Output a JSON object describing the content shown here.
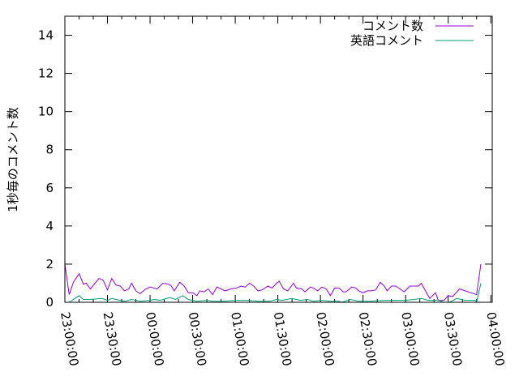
{
  "chart_data": {
    "type": "line",
    "title": "",
    "xlabel": "",
    "ylabel": "1秒毎のコメント数",
    "ylim": [
      0,
      15
    ],
    "xlim": [
      "23:00:00",
      "04:01:00"
    ],
    "yticks": [
      "0",
      "2",
      "4",
      "6",
      "8",
      "10",
      "12",
      "14"
    ],
    "xticks": [
      "23:00:00",
      "23:30:00",
      "00:00:00",
      "00:30:00",
      "01:00:00",
      "01:30:00",
      "02:00:00",
      "02:30:00",
      "03:00:00",
      "03:30:00",
      "04:00:00"
    ],
    "grid": false,
    "legend_position": "top-right",
    "series": [
      {
        "name": "コメント数",
        "color": "#9400d3",
        "x": [
          "23:00",
          "23:03",
          "23:06",
          "23:10",
          "23:13",
          "23:15",
          "23:18",
          "23:24",
          "23:27",
          "23:30",
          "23:33",
          "23:36",
          "23:39",
          "23:42",
          "23:45",
          "23:47",
          "23:50",
          "23:53",
          "23:57",
          "00:00",
          "00:05",
          "00:09",
          "00:13",
          "00:15",
          "00:17",
          "00:21",
          "00:24",
          "00:27",
          "00:30",
          "00:33",
          "00:35",
          "00:38",
          "00:41",
          "00:44",
          "00:47",
          "00:50",
          "00:53",
          "00:57",
          "01:01",
          "01:04",
          "01:07",
          "01:10",
          "01:13",
          "01:16",
          "01:19",
          "01:23",
          "01:26",
          "01:29",
          "01:31",
          "01:34",
          "01:37",
          "01:41",
          "01:43",
          "01:47",
          "01:49",
          "01:53",
          "01:55",
          "01:58",
          "02:01",
          "02:04",
          "02:07",
          "02:10",
          "02:13",
          "02:16",
          "02:18",
          "02:22",
          "02:25",
          "02:27",
          "02:30",
          "02:33",
          "02:36",
          "02:39",
          "02:42",
          "02:45",
          "02:47",
          "02:50",
          "02:53",
          "02:56",
          "02:59",
          "03:03",
          "03:06",
          "03:09",
          "03:11",
          "03:14",
          "03:17",
          "03:21",
          "03:23",
          "03:27",
          "03:30",
          "03:33",
          "03:35",
          "03:38",
          "03:42",
          "03:46",
          "03:50",
          "03:53"
        ],
        "values": [
          2.0,
          0.4,
          1.05,
          1.5,
          0.95,
          1.0,
          0.7,
          1.25,
          1.15,
          0.65,
          1.25,
          0.9,
          0.85,
          0.6,
          0.7,
          1.0,
          0.6,
          0.45,
          0.7,
          0.8,
          0.7,
          1.0,
          0.95,
          0.85,
          0.6,
          1.05,
          0.85,
          0.5,
          0.5,
          0.35,
          0.6,
          0.55,
          0.7,
          0.4,
          0.8,
          0.7,
          0.6,
          0.7,
          0.75,
          0.85,
          0.8,
          1.0,
          0.85,
          0.6,
          0.65,
          0.85,
          0.75,
          1.0,
          1.1,
          0.7,
          0.6,
          1.0,
          0.75,
          0.7,
          0.55,
          0.8,
          0.75,
          0.6,
          0.8,
          0.7,
          0.35,
          0.75,
          0.75,
          0.55,
          0.55,
          0.8,
          0.75,
          0.6,
          0.5,
          0.6,
          0.6,
          0.65,
          1.05,
          0.85,
          0.6,
          0.85,
          0.85,
          0.7,
          0.55,
          0.85,
          0.85,
          0.85,
          1.0,
          0.6,
          0.2,
          0.5,
          0.1,
          0.1,
          0.35,
          0.3,
          0.45,
          0.7,
          0.6,
          0.5,
          0.4,
          2.0
        ]
      },
      {
        "name": "英語コメント",
        "color": "#009e73",
        "x": [
          "23:03",
          "23:10",
          "23:13",
          "23:18",
          "23:26",
          "23:30",
          "23:33",
          "23:36",
          "23:42",
          "23:47",
          "23:53",
          "00:00",
          "00:03",
          "00:07",
          "00:14",
          "00:18",
          "00:23",
          "00:27",
          "00:33",
          "00:40",
          "00:44",
          "00:51",
          "01:01",
          "01:09",
          "01:16",
          "01:24",
          "01:29",
          "01:33",
          "01:40",
          "01:46",
          "01:51",
          "01:55",
          "02:01",
          "02:07",
          "02:13",
          "02:15",
          "02:21",
          "02:27",
          "02:34",
          "02:45",
          "03:00",
          "03:06",
          "03:11",
          "03:16",
          "03:23",
          "03:27",
          "03:31",
          "03:36",
          "03:42",
          "03:49",
          "03:50",
          "03:53"
        ],
        "values": [
          0,
          0.35,
          0.15,
          0.15,
          0.2,
          0.1,
          0.2,
          0.15,
          0.05,
          0.15,
          0.05,
          0.1,
          0.15,
          0.1,
          0.25,
          0.15,
          0.35,
          0.15,
          0.05,
          0.1,
          0.05,
          0.05,
          0.1,
          0.1,
          0.05,
          0.05,
          0.15,
          0.1,
          0.2,
          0.1,
          0.15,
          0.05,
          0.1,
          0.05,
          0.05,
          0,
          0.15,
          0.05,
          0.05,
          0.1,
          0.1,
          0.15,
          0.2,
          0.1,
          0.1,
          0,
          0,
          0.2,
          0.1,
          0.1,
          0,
          1.0
        ]
      }
    ]
  }
}
